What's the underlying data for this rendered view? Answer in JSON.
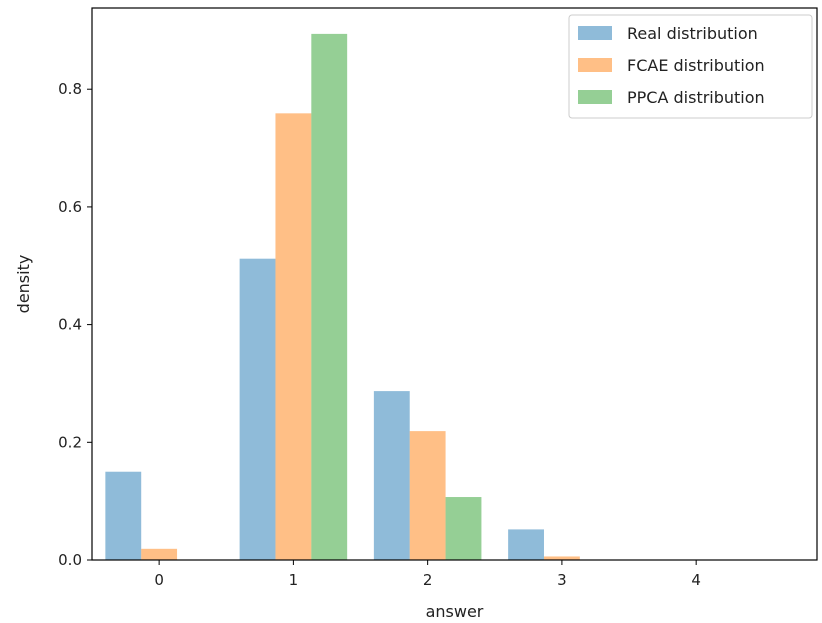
{
  "chart_data": {
    "type": "bar",
    "categories": [
      "0",
      "1",
      "2",
      "3",
      "4"
    ],
    "x": [
      0,
      1,
      2,
      3,
      4
    ],
    "series": [
      {
        "name": "Real distribution",
        "values": [
          0.15,
          0.512,
          0.287,
          0.052,
          0.0
        ],
        "color": "#1f77b4"
      },
      {
        "name": "FCAE distribution",
        "values": [
          0.019,
          0.759,
          0.219,
          0.006,
          0.0
        ],
        "color": "#ff7f0e"
      },
      {
        "name": "PPCA distribution",
        "values": [
          0.0,
          0.894,
          0.107,
          0.0,
          0.0
        ],
        "color": "#2ca02c"
      }
    ],
    "bar_alpha": 0.5,
    "xlabel": "answer",
    "ylabel": "density",
    "xlim": [
      -0.5,
      4.9
    ],
    "ylim": [
      0,
      0.938
    ],
    "yticks": [
      0.0,
      0.2,
      0.4,
      0.6,
      0.8
    ],
    "ytick_labels": [
      "0.0",
      "0.2",
      "0.4",
      "0.6",
      "0.8"
    ],
    "xticks": [
      0,
      1,
      2,
      3,
      4
    ],
    "xtick_labels": [
      "0",
      "1",
      "2",
      "3",
      "4"
    ],
    "grid": false,
    "legend_position": "top-right"
  }
}
